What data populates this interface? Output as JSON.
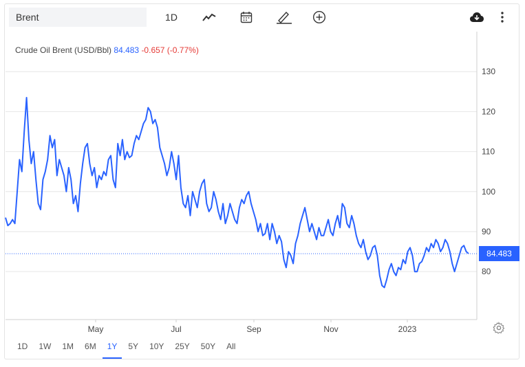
{
  "toolbar": {
    "symbol_value": "Brent",
    "interval_label": "1D",
    "icons": [
      "line-chart-icon",
      "calendar-icon",
      "pencil-icon",
      "plus-circle-icon",
      "download-cloud-icon",
      "more-vertical-icon"
    ]
  },
  "legend": {
    "name": "Crude Oil Brent (USD/Bbl)",
    "price": "84.483",
    "change": "-0.657 (-0.77%)"
  },
  "colors": {
    "line": "#2962ff",
    "change_negative": "#e53935",
    "grid": "#e6e6e6"
  },
  "range_buttons": [
    {
      "label": "1D",
      "active": false
    },
    {
      "label": "1W",
      "active": false
    },
    {
      "label": "1M",
      "active": false
    },
    {
      "label": "6M",
      "active": false
    },
    {
      "label": "1Y",
      "active": true
    },
    {
      "label": "5Y",
      "active": false
    },
    {
      "label": "10Y",
      "active": false
    },
    {
      "label": "25Y",
      "active": false
    },
    {
      "label": "50Y",
      "active": false
    },
    {
      "label": "All",
      "active": false
    }
  ],
  "chart_data": {
    "type": "line",
    "title": "Crude Oil Brent (USD/Bbl)",
    "series": [
      {
        "name": "Crude Oil Brent",
        "values": [
          93.5,
          91.5,
          92,
          93,
          92,
          100,
          108,
          105,
          115,
          123.5,
          113,
          107,
          110,
          103,
          97,
          95.5,
          103,
          105,
          108,
          114,
          111,
          113,
          104,
          108,
          106,
          104,
          100,
          106,
          103,
          97,
          99,
          95,
          102,
          107,
          111,
          112,
          107,
          104,
          106,
          101,
          104,
          103,
          105,
          104,
          108,
          109,
          103,
          101,
          112,
          109,
          113,
          108,
          110,
          108.5,
          109,
          112,
          114,
          113,
          115,
          117,
          118,
          121,
          120,
          117,
          118,
          116,
          111,
          109,
          107,
          104,
          106,
          110,
          107,
          103,
          109,
          101,
          97,
          96,
          99,
          94,
          100,
          98,
          96,
          100,
          102,
          103,
          97,
          95,
          96,
          100,
          98,
          95,
          93,
          97,
          92,
          94,
          97,
          95,
          93,
          92,
          96,
          98,
          97,
          99,
          100,
          97,
          95,
          93,
          90,
          92,
          89,
          89.5,
          92,
          88,
          92,
          90,
          87,
          89,
          87.5,
          83,
          81,
          85,
          84,
          82,
          87,
          89,
          92,
          94,
          96,
          93,
          90,
          92,
          90,
          88,
          91,
          89,
          89,
          91,
          93,
          90,
          89,
          92,
          94,
          91,
          97,
          96,
          92,
          91,
          94,
          92,
          89,
          87,
          86,
          88,
          85,
          83,
          84,
          86,
          86.5,
          84,
          79,
          76.5,
          76,
          78,
          80.5,
          82,
          80,
          79,
          81,
          80.5,
          83,
          82,
          85,
          86,
          84,
          80,
          80,
          82,
          82.5,
          84,
          86,
          85,
          87,
          86,
          88,
          87,
          85,
          86,
          88,
          87,
          85,
          82,
          80,
          82,
          84,
          86,
          86.5,
          85,
          84.5
        ]
      }
    ],
    "x_tick_labels": [
      "May",
      "Jul",
      "Sep",
      "Nov",
      "2023"
    ],
    "y_tick_labels": [
      80,
      90,
      100,
      110,
      120,
      130
    ],
    "ylim": [
      68,
      140
    ],
    "last_value": "84.483",
    "grid": true,
    "xlabel": "",
    "ylabel": ""
  }
}
